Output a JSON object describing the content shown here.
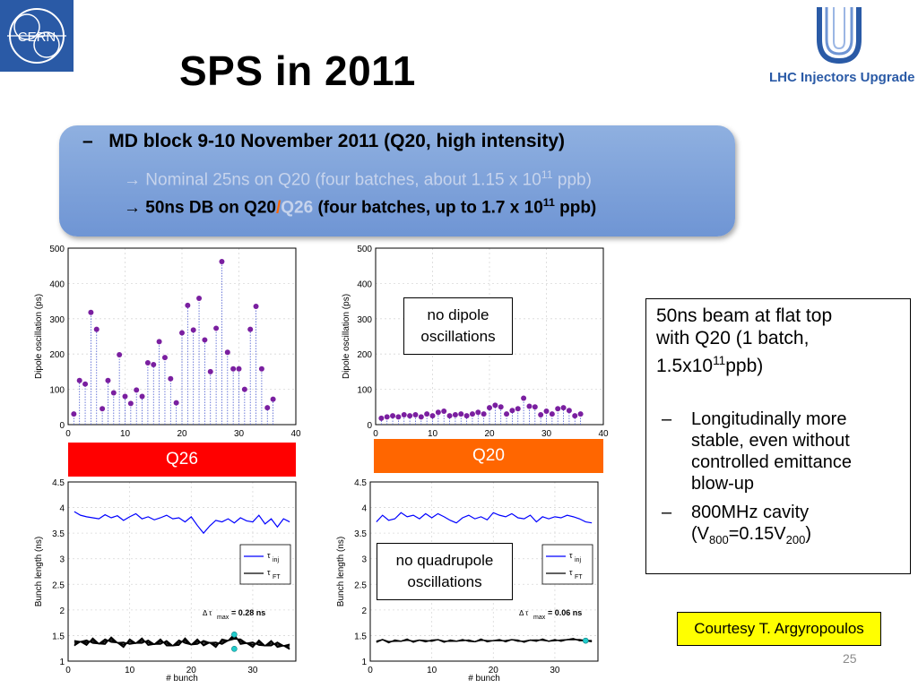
{
  "header": {
    "cern_logo_text": "CERN",
    "title": "SPS in 2011",
    "lhc_logo_text": "LHC Injectors Upgrade"
  },
  "md_box": {
    "bullet": "–",
    "line1": "MD block 9-10 November 2011 (Q20, high intensity)",
    "line2_prefix": "→ Nominal 25ns on Q20  (four batches, about 1.15 x 10",
    "line2_sup": "11",
    "line2_suffix": " ppb)",
    "line3_a": "→ 50ns DB on Q20",
    "line3_slash": "/",
    "line3_q26": "Q26",
    "line3_b": " (four batches, up to 1.7 x 10",
    "line3_sup": "11",
    "line3_c": " ppb)"
  },
  "bars": {
    "q26": "Q26",
    "q20": "Q20",
    "q26_color": "#ff0000",
    "q20_color": "#ff6600"
  },
  "callouts": {
    "dipole_1": "no dipole",
    "dipole_2": "oscillations",
    "quad_1": "no quadrupole",
    "quad_2": "oscillations"
  },
  "side": {
    "line1": "50ns beam at flat top",
    "line2": "with Q20 (1 batch,",
    "line3_a": "1.5x10",
    "line3_sup": "11",
    "line3_b": "ppb)",
    "b1_dash": "–",
    "b1_l1": "Longitudinally more",
    "b1_l2": "stable, even without",
    "b1_l3": "controlled emittance",
    "b1_l4": "blow-up",
    "b2_dash": "–",
    "b2_l1": "800MHz cavity",
    "b2_l2a": "(V",
    "b2_sub1": "800",
    "b2_l2b": "=0.15V",
    "b2_sub2": "200",
    "b2_l2c": ")"
  },
  "courtesy": "Courtesy T. Argyropoulos",
  "page_number": "25",
  "chart_data": [
    {
      "id": "dipole_q26",
      "type": "scatter",
      "ylabel": "Dipole oscillation (ps)",
      "xlabel": "",
      "xlim": [
        0,
        40
      ],
      "ylim": [
        0,
        500
      ],
      "xticks": [
        0,
        10,
        20,
        30,
        40
      ],
      "yticks": [
        0,
        100,
        200,
        300,
        400,
        500
      ],
      "grid": true,
      "color": "#7a1fa0",
      "x": [
        1,
        2,
        3,
        4,
        5,
        6,
        7,
        8,
        9,
        10,
        11,
        12,
        13,
        14,
        15,
        16,
        17,
        18,
        19,
        20,
        21,
        22,
        23,
        24,
        25,
        26,
        27,
        28,
        29,
        30,
        31,
        32,
        33,
        34,
        35,
        36
      ],
      "y": [
        30,
        125,
        115,
        318,
        270,
        45,
        125,
        90,
        198,
        80,
        60,
        98,
        80,
        175,
        170,
        235,
        190,
        130,
        62,
        260,
        338,
        268,
        358,
        240,
        150,
        273,
        462,
        205,
        158,
        158,
        100,
        270,
        335,
        158,
        48,
        72
      ]
    },
    {
      "id": "dipole_q20",
      "type": "scatter",
      "ylabel": "Dipole oscillation (ps)",
      "xlabel": "",
      "xlim": [
        0,
        40
      ],
      "ylim": [
        0,
        500
      ],
      "xticks": [
        0,
        10,
        20,
        30,
        40
      ],
      "yticks": [
        0,
        100,
        200,
        300,
        400,
        500
      ],
      "grid": true,
      "color": "#7a1fa0",
      "x": [
        1,
        2,
        3,
        4,
        5,
        6,
        7,
        8,
        9,
        10,
        11,
        12,
        13,
        14,
        15,
        16,
        17,
        18,
        19,
        20,
        21,
        22,
        23,
        24,
        25,
        26,
        27,
        28,
        29,
        30,
        31,
        32,
        33,
        34,
        35,
        36
      ],
      "y": [
        18,
        22,
        25,
        22,
        28,
        25,
        28,
        22,
        30,
        25,
        35,
        38,
        25,
        28,
        30,
        25,
        30,
        35,
        30,
        48,
        55,
        50,
        30,
        40,
        45,
        75,
        52,
        50,
        28,
        38,
        30,
        45,
        48,
        40,
        25,
        30
      ]
    },
    {
      "id": "bunch_q26",
      "type": "line",
      "ylabel": "Bunch length (ns)",
      "xlabel": "# bunch",
      "xlim": [
        0,
        37
      ],
      "ylim": [
        1,
        4.5
      ],
      "xticks": [
        0,
        10,
        20,
        30
      ],
      "yticks": [
        1,
        1.5,
        2,
        2.5,
        3,
        3.5,
        4,
        4.5
      ],
      "grid": true,
      "legend": {
        "position": "right",
        "entries": [
          {
            "name": "τ inj",
            "sym": "τ",
            "sub": "inj",
            "color": "#0000ff"
          },
          {
            "name": "τ FT",
            "sym": "τ",
            "sub": "FT",
            "color": "#000000"
          }
        ]
      },
      "annotation": {
        "prefix": "Δ τ",
        "sub": "max",
        "value": "= 0.28 ns"
      },
      "series": [
        {
          "name": "τ inj",
          "color": "#0000ff",
          "x": [
            1,
            2,
            3,
            4,
            5,
            6,
            7,
            8,
            9,
            10,
            11,
            12,
            13,
            14,
            15,
            16,
            17,
            18,
            19,
            20,
            21,
            22,
            23,
            24,
            25,
            26,
            27,
            28,
            29,
            30,
            31,
            32,
            33,
            34,
            35,
            36
          ],
          "values": [
            3.92,
            3.85,
            3.82,
            3.8,
            3.78,
            3.86,
            3.8,
            3.84,
            3.75,
            3.82,
            3.88,
            3.78,
            3.82,
            3.76,
            3.8,
            3.85,
            3.78,
            3.8,
            3.72,
            3.82,
            3.65,
            3.5,
            3.64,
            3.75,
            3.72,
            3.78,
            3.7,
            3.8,
            3.74,
            3.72,
            3.85,
            3.68,
            3.78,
            3.62,
            3.78,
            3.72
          ]
        },
        {
          "name": "τ FT",
          "color": "#000000",
          "x": [
            1,
            2,
            3,
            4,
            5,
            6,
            7,
            8,
            9,
            10,
            11,
            12,
            13,
            14,
            15,
            16,
            17,
            18,
            19,
            20,
            21,
            22,
            23,
            24,
            25,
            26,
            27,
            28,
            29,
            30,
            31,
            32,
            33,
            34,
            35,
            36
          ],
          "values": [
            1.35,
            1.38,
            1.36,
            1.4,
            1.34,
            1.38,
            1.42,
            1.36,
            1.32,
            1.38,
            1.35,
            1.4,
            1.36,
            1.33,
            1.38,
            1.35,
            1.3,
            1.36,
            1.4,
            1.32,
            1.38,
            1.35,
            1.36,
            1.32,
            1.38,
            1.4,
            1.48,
            1.38,
            1.35,
            1.32,
            1.36,
            1.3,
            1.35,
            1.32,
            1.3,
            1.28
          ]
        }
      ],
      "highlight": {
        "x": 27,
        "values": [
          1.52,
          1.24
        ],
        "color": "#22cccc"
      }
    },
    {
      "id": "bunch_q20",
      "type": "line",
      "ylabel": "Bunch length (ns)",
      "xlabel": "# bunch",
      "xlim": [
        0,
        37
      ],
      "ylim": [
        1,
        4.5
      ],
      "xticks": [
        0,
        10,
        20,
        30
      ],
      "yticks": [
        1,
        1.5,
        2,
        2.5,
        3,
        3.5,
        4,
        4.5
      ],
      "grid": true,
      "legend": {
        "position": "right",
        "entries": [
          {
            "name": "τ inj",
            "sym": "τ",
            "sub": "inj",
            "color": "#0000ff"
          },
          {
            "name": "τ FT",
            "sym": "τ",
            "sub": "FT",
            "color": "#000000"
          }
        ]
      },
      "annotation": {
        "prefix": "Δ τ",
        "sub": "max",
        "value": "= 0.06 ns"
      },
      "series": [
        {
          "name": "τ inj",
          "color": "#0000ff",
          "x": [
            1,
            2,
            3,
            4,
            5,
            6,
            7,
            8,
            9,
            10,
            11,
            12,
            13,
            14,
            15,
            16,
            17,
            18,
            19,
            20,
            21,
            22,
            23,
            24,
            25,
            26,
            27,
            28,
            29,
            30,
            31,
            32,
            33,
            34,
            35,
            36
          ],
          "values": [
            3.72,
            3.85,
            3.75,
            3.78,
            3.9,
            3.82,
            3.85,
            3.78,
            3.88,
            3.8,
            3.88,
            3.82,
            3.75,
            3.7,
            3.8,
            3.85,
            3.78,
            3.82,
            3.76,
            3.9,
            3.85,
            3.82,
            3.88,
            3.8,
            3.78,
            3.85,
            3.72,
            3.82,
            3.78,
            3.82,
            3.8,
            3.85,
            3.82,
            3.78,
            3.72,
            3.7
          ]
        },
        {
          "name": "τ FT",
          "color": "#000000",
          "x": [
            1,
            2,
            3,
            4,
            5,
            6,
            7,
            8,
            9,
            10,
            11,
            12,
            13,
            14,
            15,
            16,
            17,
            18,
            19,
            20,
            21,
            22,
            23,
            24,
            25,
            26,
            27,
            28,
            29,
            30,
            31,
            32,
            33,
            34,
            35,
            36
          ],
          "values": [
            1.38,
            1.42,
            1.37,
            1.4,
            1.39,
            1.42,
            1.38,
            1.41,
            1.39,
            1.4,
            1.42,
            1.38,
            1.4,
            1.39,
            1.41,
            1.4,
            1.38,
            1.42,
            1.39,
            1.4,
            1.41,
            1.39,
            1.42,
            1.4,
            1.38,
            1.41,
            1.4,
            1.42,
            1.39,
            1.41,
            1.4,
            1.42,
            1.43,
            1.41,
            1.4,
            1.39
          ]
        }
      ],
      "highlight": {
        "x": 35,
        "values": [
          1.4
        ],
        "color": "#22cccc"
      }
    }
  ]
}
